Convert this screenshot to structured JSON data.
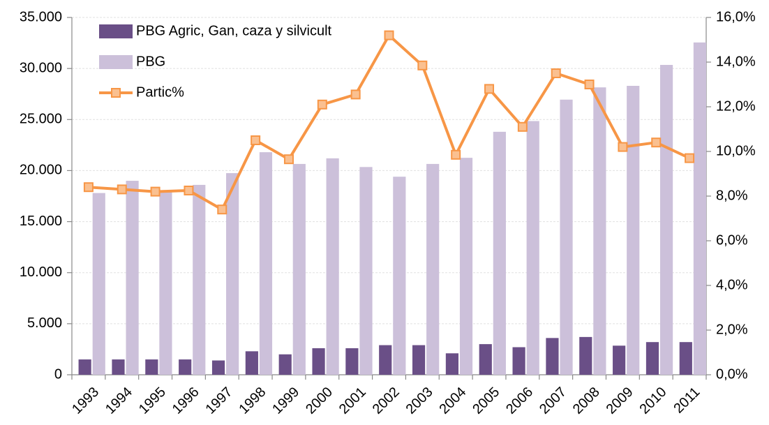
{
  "chart_data": {
    "type": "bar",
    "categories": [
      "1993",
      "1994",
      "1995",
      "1996",
      "1997",
      "1998",
      "1999",
      "2000",
      "2001",
      "2002",
      "2003",
      "2004",
      "2005",
      "2006",
      "2007",
      "2008",
      "2009",
      "2010",
      "2011"
    ],
    "series": [
      {
        "name": "PBG Agric, Gan, caza y silvicult",
        "type": "bar",
        "color": "#6a4f87",
        "values": [
          1500,
          1500,
          1500,
          1500,
          1400,
          2300,
          2000,
          2600,
          2600,
          2900,
          2900,
          2100,
          3000,
          2700,
          3600,
          3700,
          2850,
          3200,
          3200
        ]
      },
      {
        "name": "PBG",
        "type": "bar",
        "color": "#ccc0da",
        "values": [
          17800,
          19000,
          18000,
          18600,
          19750,
          21800,
          20650,
          21200,
          20350,
          19400,
          20650,
          21250,
          23800,
          24850,
          26950,
          28150,
          28300,
          30350,
          32550
        ]
      },
      {
        "name": "Partic%",
        "type": "line",
        "axis": "y2",
        "color": "#f79646",
        "marker_color": "#fac090",
        "values": [
          8.4,
          8.3,
          8.2,
          8.25,
          7.4,
          10.5,
          9.65,
          12.1,
          12.55,
          15.2,
          13.85,
          9.85,
          12.8,
          11.1,
          13.5,
          13.0,
          10.2,
          10.4,
          9.7
        ]
      }
    ],
    "ylim": [
      0,
      35000
    ],
    "yticks": [
      0,
      {
        "value": 5000,
        "label": "5.000"
      },
      {
        "value": 10000,
        "label": "10.000"
      },
      {
        "value": 15000,
        "label": "15.000"
      },
      {
        "value": 20000,
        "label": "20.000"
      },
      {
        "value": 25000,
        "label": "25.000"
      },
      {
        "value": 30000,
        "label": "30.000"
      },
      {
        "value": 35000,
        "label": "35.000"
      }
    ],
    "y2lim": [
      0,
      16
    ],
    "y2ticks": [
      {
        "value": 0,
        "label": "0,0%"
      },
      {
        "value": 2,
        "label": "2,0%"
      },
      {
        "value": 4,
        "label": "4,0%"
      },
      {
        "value": 6,
        "label": "6,0%"
      },
      {
        "value": 8,
        "label": "8,0%"
      },
      {
        "value": 10,
        "label": "10,0%"
      },
      {
        "value": 12,
        "label": "12,0%"
      },
      {
        "value": 14,
        "label": "14,0%"
      },
      {
        "value": 16,
        "label": "16,0%"
      }
    ],
    "grid": true,
    "legend": "upper left"
  }
}
